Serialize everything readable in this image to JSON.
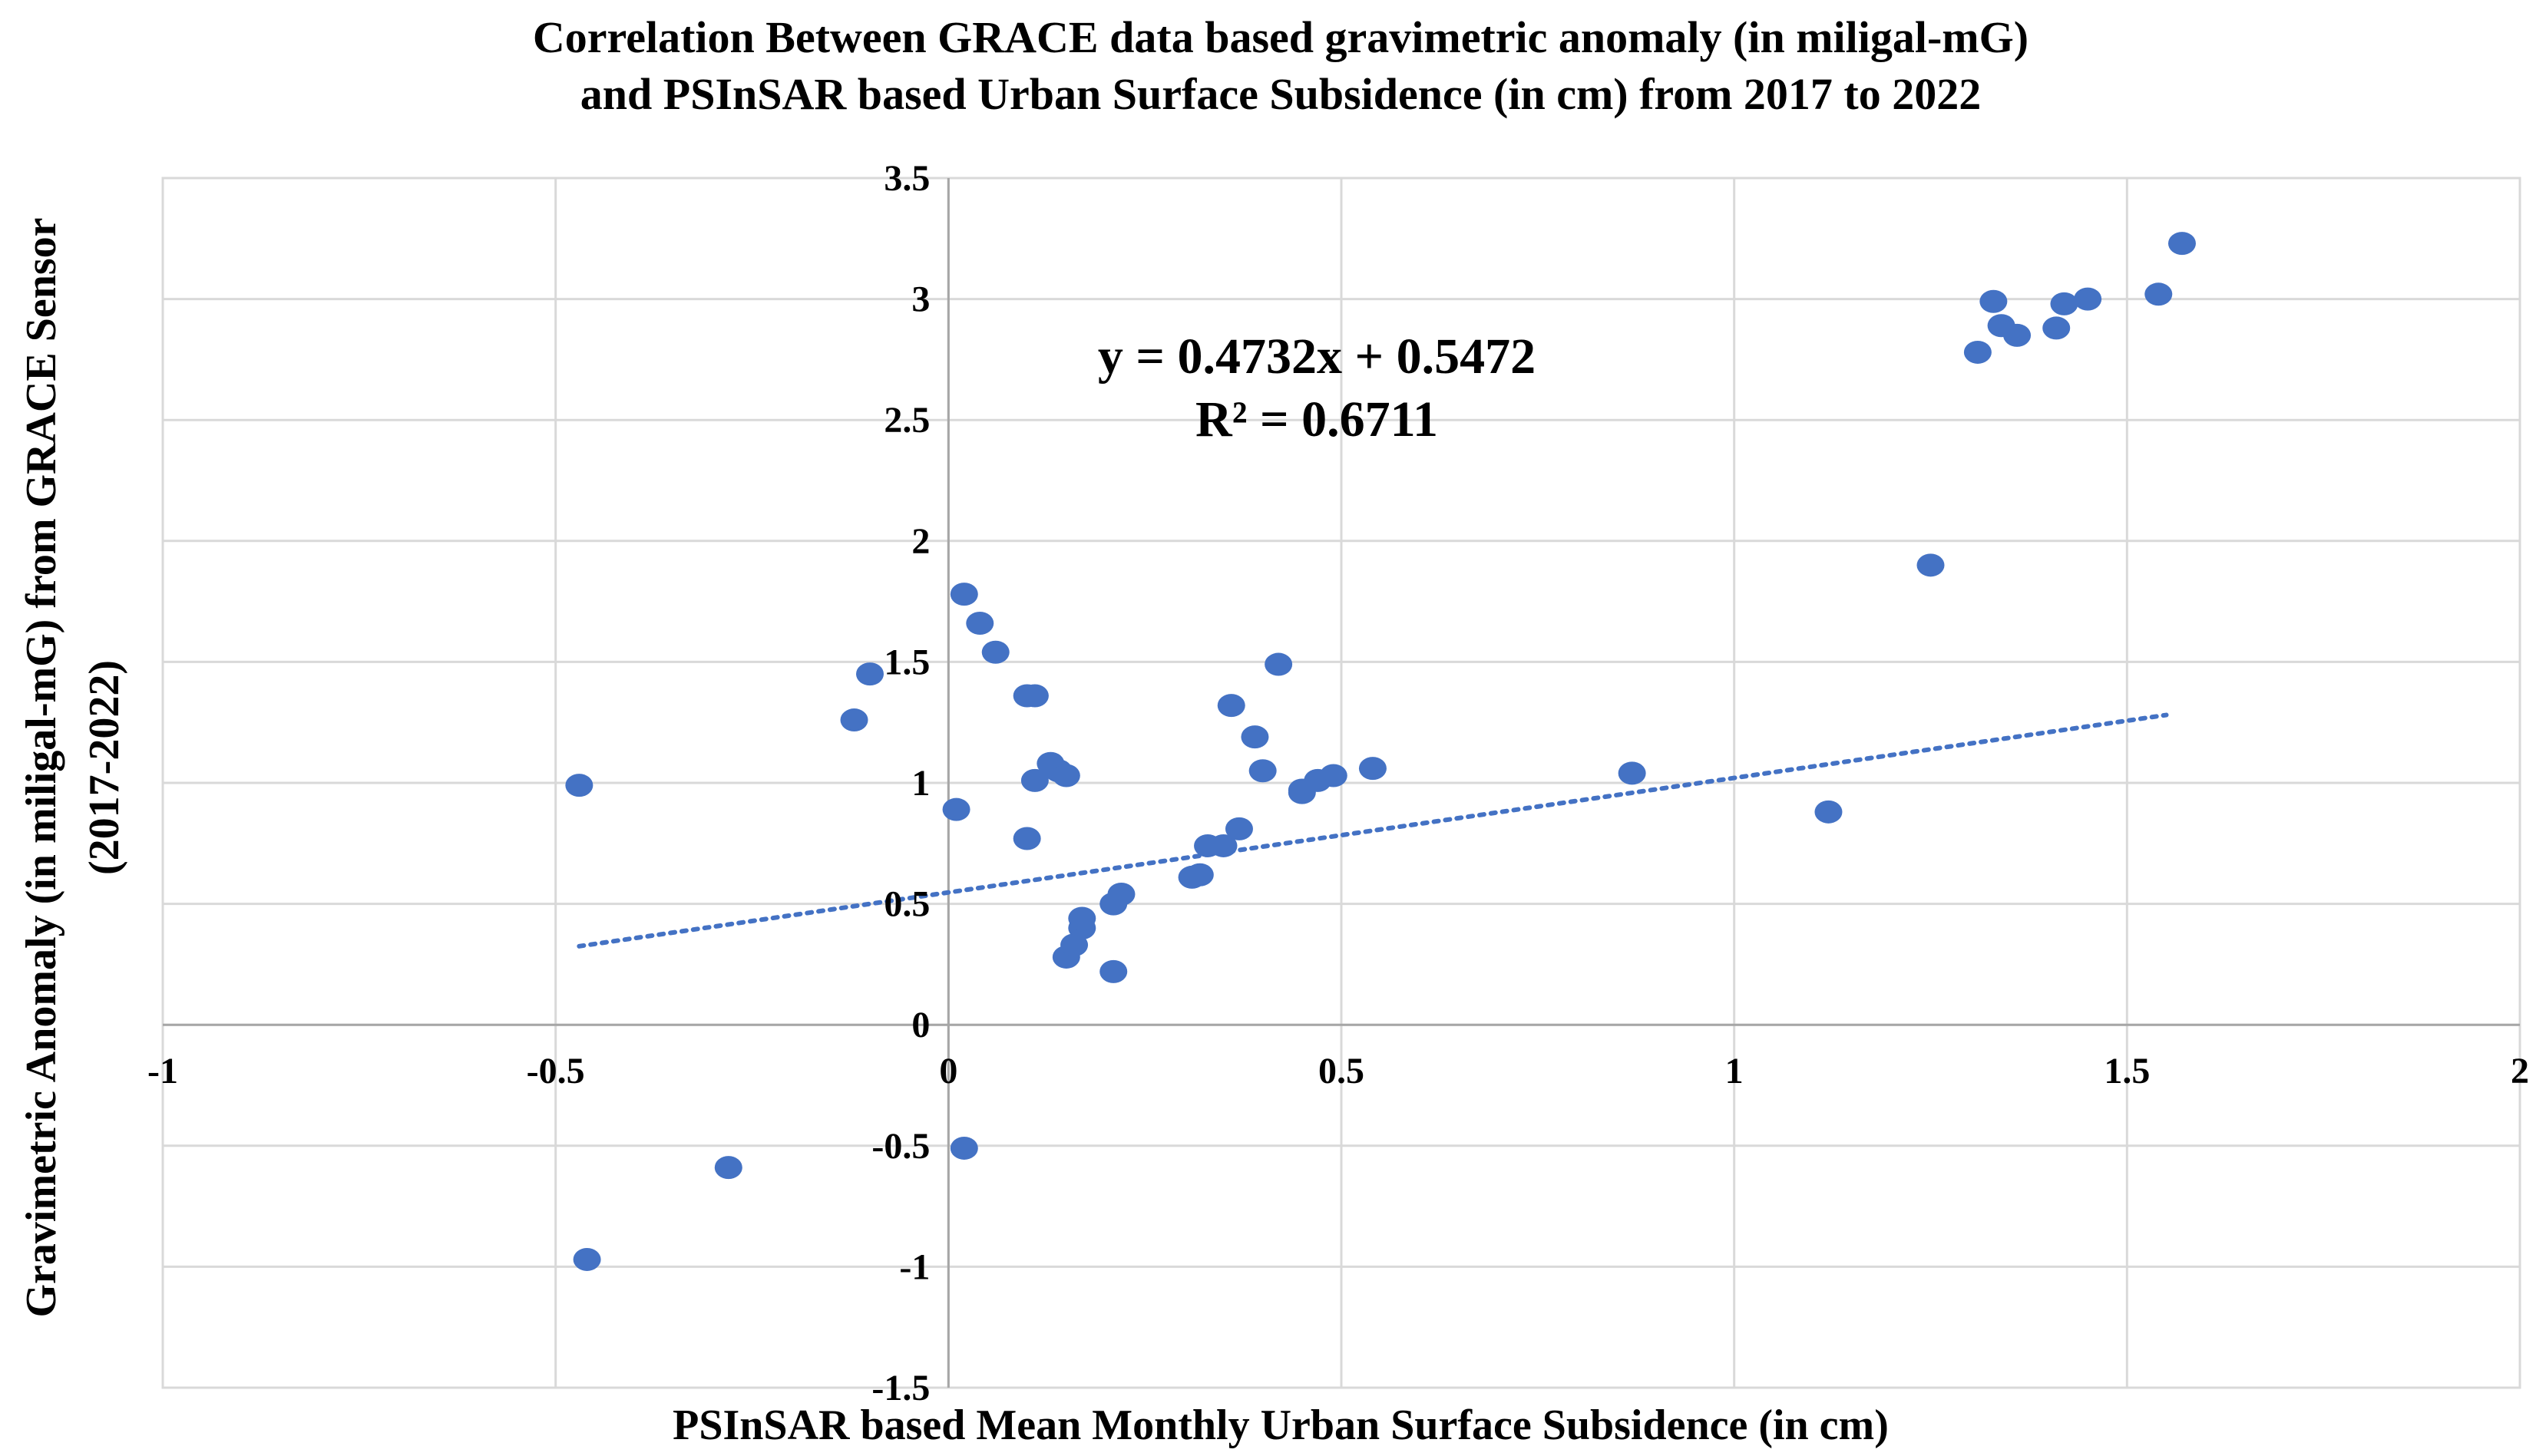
{
  "chart_data": {
    "type": "scatter",
    "title": [
      "Correlation Between GRACE data based gravimetric anomaly (in miligal-mG)",
      "and PSInSAR based Urban Surface Subsidence (in cm) from 2017 to 2022"
    ],
    "xlabel": "PSInSAR based Mean Monthly Urban Surface Subsidence (in cm)",
    "ylabel": [
      "Gravimetric Anomaly (in miligal-mG) from GRACE Sensor",
      "(2017-2022)"
    ],
    "xlim": [
      -1,
      2
    ],
    "ylim": [
      -1.5,
      3.5
    ],
    "xticks": [
      -1,
      -0.5,
      0,
      0.5,
      1,
      1.5,
      2
    ],
    "yticks": [
      -1.5,
      -1,
      -0.5,
      0,
      0.5,
      1,
      1.5,
      2,
      2.5,
      3,
      3.5
    ],
    "xtick_labels": [
      "-1",
      "-0.5",
      "0",
      "0.5",
      "1",
      "1.5",
      "2"
    ],
    "ytick_labels": [
      "-1.5",
      "-1",
      "-0.5",
      "0",
      "0.5",
      "1",
      "1.5",
      "2",
      "2.5",
      "3",
      "3.5"
    ],
    "grid": true,
    "marker_color": "#4472C4",
    "trendline": {
      "type": "linear",
      "slope": 0.4732,
      "intercept": 0.5472,
      "x_range": [
        -0.47,
        1.55
      ],
      "style": "dotted",
      "color": "#4472C4",
      "equation_label": "y = 0.4732x + 0.5472",
      "r2_label": "R² = 0.6711"
    },
    "points": [
      {
        "x": -0.47,
        "y": 0.99
      },
      {
        "x": -0.46,
        "y": -0.97
      },
      {
        "x": -0.28,
        "y": -0.59
      },
      {
        "x": -0.1,
        "y": 1.45
      },
      {
        "x": -0.12,
        "y": 1.26
      },
      {
        "x": 0.01,
        "y": 0.89
      },
      {
        "x": 0.02,
        "y": -0.51
      },
      {
        "x": 0.02,
        "y": 1.78
      },
      {
        "x": 0.04,
        "y": 1.66
      },
      {
        "x": 0.06,
        "y": 1.54
      },
      {
        "x": 0.1,
        "y": 1.36
      },
      {
        "x": 0.11,
        "y": 1.36
      },
      {
        "x": 0.11,
        "y": 1.01
      },
      {
        "x": 0.1,
        "y": 0.77
      },
      {
        "x": 0.13,
        "y": 1.08
      },
      {
        "x": 0.14,
        "y": 1.05
      },
      {
        "x": 0.15,
        "y": 1.03
      },
      {
        "x": 0.15,
        "y": 0.28
      },
      {
        "x": 0.16,
        "y": 0.33
      },
      {
        "x": 0.17,
        "y": 0.4
      },
      {
        "x": 0.17,
        "y": 0.44
      },
      {
        "x": 0.21,
        "y": 0.22
      },
      {
        "x": 0.21,
        "y": 0.5
      },
      {
        "x": 0.22,
        "y": 0.54
      },
      {
        "x": 0.31,
        "y": 0.61
      },
      {
        "x": 0.32,
        "y": 0.62
      },
      {
        "x": 0.33,
        "y": 0.74
      },
      {
        "x": 0.35,
        "y": 0.74
      },
      {
        "x": 0.36,
        "y": 1.32
      },
      {
        "x": 0.37,
        "y": 0.81
      },
      {
        "x": 0.39,
        "y": 1.19
      },
      {
        "x": 0.4,
        "y": 1.05
      },
      {
        "x": 0.42,
        "y": 1.49
      },
      {
        "x": 0.45,
        "y": 0.96
      },
      {
        "x": 0.45,
        "y": 0.97
      },
      {
        "x": 0.47,
        "y": 1.01
      },
      {
        "x": 0.49,
        "y": 1.03
      },
      {
        "x": 0.54,
        "y": 1.06
      },
      {
        "x": 0.87,
        "y": 1.04
      },
      {
        "x": 1.12,
        "y": 0.88
      },
      {
        "x": 1.25,
        "y": 1.9
      },
      {
        "x": 1.31,
        "y": 2.78
      },
      {
        "x": 1.33,
        "y": 2.99
      },
      {
        "x": 1.34,
        "y": 2.89
      },
      {
        "x": 1.36,
        "y": 2.85
      },
      {
        "x": 1.41,
        "y": 2.88
      },
      {
        "x": 1.42,
        "y": 2.98
      },
      {
        "x": 1.45,
        "y": 3.0
      },
      {
        "x": 1.54,
        "y": 3.02
      },
      {
        "x": 1.57,
        "y": 3.23
      }
    ]
  }
}
